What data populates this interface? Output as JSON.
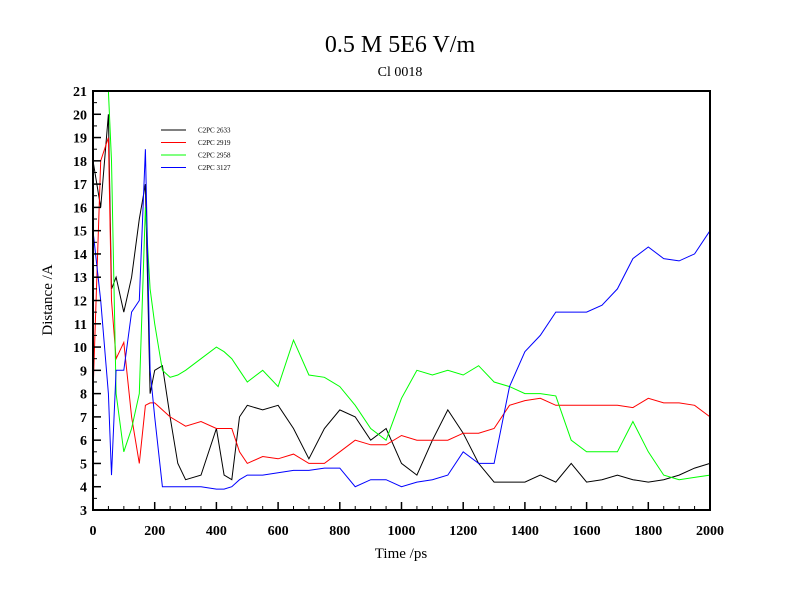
{
  "chart_data": {
    "type": "line",
    "title": "0.5 M 5E6 V/m",
    "subtitle": "Cl 0018",
    "xlabel": "Time /ps",
    "ylabel": "Distance /A",
    "xlim": [
      0,
      2000
    ],
    "ylim": [
      3,
      21
    ],
    "xticks": [
      0,
      200,
      400,
      600,
      800,
      1000,
      1200,
      1400,
      1600,
      1800,
      2000
    ],
    "yticks": [
      3,
      4,
      5,
      6,
      7,
      8,
      9,
      10,
      11,
      12,
      13,
      14,
      15,
      16,
      17,
      18,
      19,
      20,
      21
    ],
    "grid": false,
    "legend_position": "top-left",
    "x": [
      0,
      25,
      50,
      60,
      75,
      100,
      125,
      150,
      170,
      185,
      200,
      225,
      250,
      275,
      300,
      350,
      400,
      425,
      450,
      475,
      500,
      550,
      600,
      650,
      700,
      750,
      800,
      850,
      900,
      950,
      1000,
      1050,
      1100,
      1150,
      1200,
      1250,
      1300,
      1350,
      1400,
      1450,
      1500,
      1550,
      1600,
      1650,
      1700,
      1750,
      1800,
      1850,
      1900,
      1950,
      2000
    ],
    "series": [
      {
        "name": "C2PC 2633",
        "color": "#000000",
        "values": [
          18,
          16,
          20,
          12.5,
          13,
          11.5,
          13,
          15.5,
          17,
          8,
          9,
          9.2,
          7,
          5,
          4.3,
          4.5,
          6.5,
          4.5,
          4.3,
          7,
          7.5,
          7.3,
          7.5,
          6.5,
          5.2,
          6.5,
          7.3,
          7,
          6,
          6.5,
          5,
          4.5,
          6,
          7.3,
          6.3,
          5,
          4.2,
          4.2,
          4.2,
          4.5,
          4.2,
          5,
          4.2,
          4.3,
          4.5,
          4.3,
          4.2,
          4.3,
          4.5,
          4.8,
          5
        ]
      },
      {
        "name": "C2PC 2919",
        "color": "#ff0000",
        "values": [
          8,
          18,
          19,
          12,
          9.5,
          10.2,
          7,
          5,
          7.5,
          7.6,
          7.6,
          7.3,
          7,
          6.8,
          6.6,
          6.8,
          6.5,
          6.5,
          6.5,
          5.5,
          5,
          5.3,
          5.2,
          5.4,
          5,
          5,
          5.5,
          6,
          5.8,
          5.8,
          6.2,
          6,
          6,
          6,
          6.3,
          6.3,
          6.5,
          7.5,
          7.7,
          7.8,
          7.5,
          7.5,
          7.5,
          7.5,
          7.5,
          7.4,
          7.8,
          7.6,
          7.6,
          7.5,
          7
        ]
      },
      {
        "name": "C2PC 2958",
        "color": "#00ff00",
        "values": [
          21,
          21,
          21,
          18,
          8,
          5.5,
          6.5,
          8,
          16,
          12.5,
          11,
          9,
          8.7,
          8.8,
          9,
          9.5,
          10,
          9.8,
          9.5,
          9,
          8.5,
          9,
          8.3,
          10.3,
          8.8,
          8.7,
          8.3,
          7.5,
          6.5,
          6,
          7.8,
          9,
          8.8,
          9,
          8.8,
          9.2,
          8.5,
          8.3,
          8,
          8,
          7.9,
          6,
          5.5,
          5.5,
          5.5,
          6.8,
          5.5,
          4.5,
          4.3,
          4.4,
          4.5
        ]
      },
      {
        "name": "C2PC 3127",
        "color": "#0000ff",
        "values": [
          15,
          12,
          8,
          4.5,
          9,
          9,
          11.5,
          12,
          18.5,
          9,
          7,
          4,
          4,
          4,
          4,
          4,
          3.9,
          3.9,
          4,
          4.3,
          4.5,
          4.5,
          4.6,
          4.7,
          4.7,
          4.8,
          4.8,
          4,
          4.3,
          4.3,
          4,
          4.2,
          4.3,
          4.5,
          5.5,
          5,
          5,
          8.3,
          9.8,
          10.5,
          11.5,
          11.5,
          11.5,
          11.8,
          12.5,
          13.8,
          14.3,
          13.8,
          13.7,
          14,
          15
        ]
      }
    ]
  }
}
